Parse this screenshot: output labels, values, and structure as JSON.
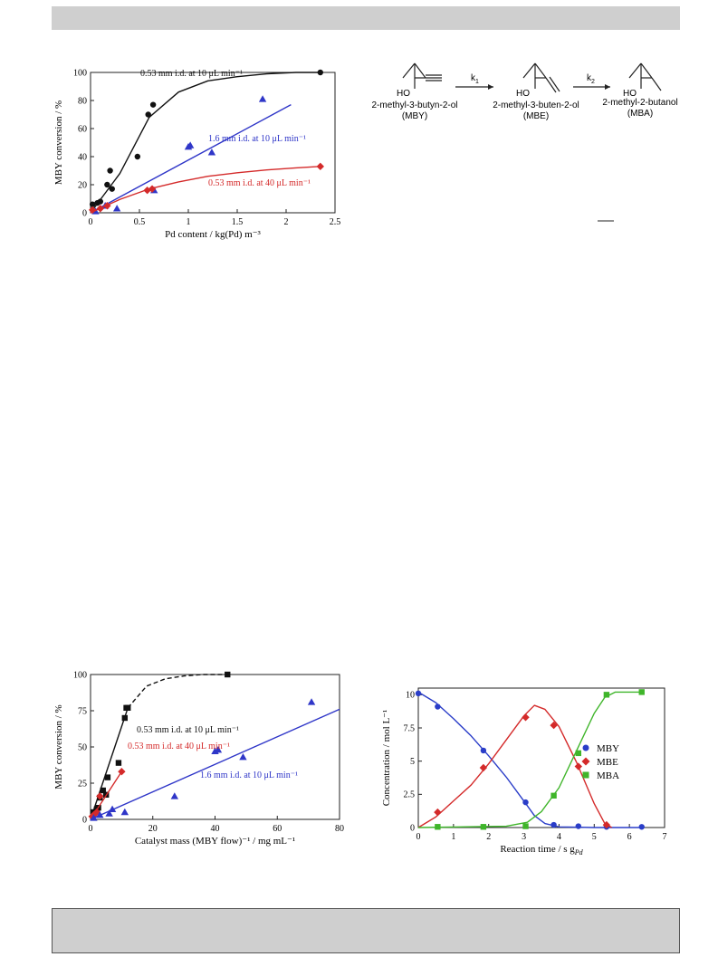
{
  "page": {
    "header_band": "",
    "footer_band": ""
  },
  "chart_data": [
    {
      "type": "scatter",
      "xlabel": "Pd content / kg(Pd) m⁻³",
      "ylabel": "MBY conversion / %",
      "xlim": [
        0,
        2.5
      ],
      "ylim": [
        0,
        100
      ],
      "xticks": [
        "0",
        "0.5",
        "1",
        "1.5",
        "2",
        "2.5"
      ],
      "yticks": [
        "0",
        "20",
        "40",
        "60",
        "80",
        "100"
      ],
      "series": [
        {
          "name": "0.53 mm i.d. at 10 μL min⁻¹",
          "color": "#111111",
          "marker": "circle",
          "x": [
            0.02,
            0.07,
            0.1,
            0.17,
            0.2,
            0.22,
            0.48,
            0.59,
            0.64,
            2.35
          ],
          "y": [
            6,
            7,
            8,
            20,
            30,
            17,
            40,
            70,
            77,
            100
          ],
          "fit_x": [
            0,
            0.3,
            0.6,
            0.9,
            1.2,
            1.5,
            1.8,
            2.1,
            2.35
          ],
          "fit_y": [
            0,
            28,
            68,
            86,
            94,
            97,
            99,
            100,
            100
          ]
        },
        {
          "name": "1.6 mm i.d. at 10 μL min⁻¹",
          "color": "#2f36c8",
          "marker": "triangle",
          "x": [
            0.05,
            0.15,
            0.27,
            0.65,
            1.0,
            1.02,
            1.24,
            1.76
          ],
          "y": [
            1,
            5,
            3,
            16,
            47,
            48,
            43,
            81
          ],
          "fit_x": [
            0,
            2.05
          ],
          "fit_y": [
            0,
            77
          ]
        },
        {
          "name": "0.53 mm i.d. at 40 μL min⁻¹",
          "color": "#d42a2a",
          "marker": "diamond",
          "x": [
            0.02,
            0.1,
            0.17,
            0.58,
            0.63,
            2.35
          ],
          "y": [
            2,
            3,
            5,
            16,
            17,
            33
          ],
          "fit_x": [
            0,
            0.3,
            0.6,
            0.9,
            1.2,
            1.5,
            1.8,
            2.1,
            2.35
          ],
          "fit_y": [
            0,
            9.5,
            17,
            22,
            26,
            28.5,
            30.5,
            32,
            33
          ]
        }
      ]
    },
    {
      "type": "scatter",
      "xlabel": "Catalyst mass (MBY flow)⁻¹ / mg mL⁻¹",
      "ylabel": "MBY conversion / %",
      "xlim": [
        0,
        80
      ],
      "ylim": [
        0,
        100
      ],
      "xticks": [
        "0",
        "20",
        "40",
        "60",
        "80"
      ],
      "yticks": [
        "0",
        "25",
        "50",
        "75",
        "100"
      ],
      "series": [
        {
          "name": "0.53 mm i.d. at 10 μL min⁻¹",
          "color": "#111111",
          "marker": "square",
          "x": [
            1,
            2,
            2.5,
            3,
            4,
            5,
            5.5,
            9,
            11,
            11.5,
            12,
            44
          ],
          "y": [
            5,
            7,
            8,
            15,
            20,
            17,
            29,
            39,
            70,
            77,
            77,
            100
          ],
          "fit_x": [
            0,
            12
          ],
          "fit_y": [
            0,
            77
          ],
          "dash_x": [
            12,
            18,
            24,
            30,
            36,
            44
          ],
          "dash_y": [
            77,
            92,
            97,
            99,
            100,
            100
          ]
        },
        {
          "name": "0.53 mm i.d. at 40 μL min⁻¹",
          "color": "#d42a2a",
          "marker": "diamond",
          "x": [
            0.5,
            1,
            2,
            3,
            10
          ],
          "y": [
            2,
            3,
            5,
            16,
            33
          ],
          "fit_x": [
            0,
            10
          ],
          "fit_y": [
            0,
            33
          ]
        },
        {
          "name": "1.6 mm i.d. at 10 μL min⁻¹",
          "color": "#2f36c8",
          "marker": "triangle",
          "x": [
            1,
            3,
            6,
            7,
            11,
            27,
            40,
            41,
            49,
            71
          ],
          "y": [
            1,
            3,
            4,
            7,
            5,
            16,
            47,
            48,
            43,
            81
          ],
          "fit_x": [
            0,
            80
          ],
          "fit_y": [
            0,
            76
          ]
        }
      ]
    },
    {
      "type": "scatter",
      "xlabel": "Reaction time / s g",
      "xlabel_sub": "Pd",
      "ylabel": "Concentration / mol L⁻¹",
      "xlim": [
        0,
        7
      ],
      "ylim": [
        0,
        10.5
      ],
      "xticks": [
        "0",
        "1",
        "2",
        "3",
        "4",
        "5",
        "6",
        "7"
      ],
      "yticks": [
        "0",
        "2.5",
        "5",
        "7.5",
        "10"
      ],
      "legend_position": "right",
      "series": [
        {
          "name": "MBY",
          "color": "#2a3dc8",
          "marker": "circle",
          "x": [
            0,
            0.55,
            1.85,
            3.05,
            3.85,
            4.55,
            5.35,
            6.35
          ],
          "y": [
            10.1,
            9.1,
            5.8,
            1.9,
            0.2,
            0.1,
            0.05,
            0.05
          ],
          "fit_x": [
            0,
            0.5,
            1,
            1.5,
            2,
            2.5,
            3,
            3.3,
            3.6,
            4,
            5,
            6.35
          ],
          "fit_y": [
            10.2,
            9.4,
            8.2,
            6.9,
            5.4,
            3.8,
            2.0,
            0.9,
            0.3,
            0.05,
            0,
            0
          ]
        },
        {
          "name": "MBE",
          "color": "#d42a2a",
          "marker": "diamond",
          "x": [
            0.55,
            1.85,
            3.05,
            3.85,
            4.55,
            5.35
          ],
          "y": [
            1.15,
            4.5,
            8.3,
            7.7,
            4.6,
            0.2
          ],
          "fit_x": [
            0,
            0.5,
            1,
            1.5,
            2,
            2.5,
            3,
            3.3,
            3.6,
            4,
            4.5,
            5,
            5.3,
            5.5
          ],
          "fit_y": [
            0,
            0.8,
            2.0,
            3.2,
            4.8,
            6.6,
            8.4,
            9.2,
            8.9,
            7.6,
            4.9,
            1.8,
            0.3,
            0
          ]
        },
        {
          "name": "MBA",
          "color": "#3fb52a",
          "marker": "square",
          "x": [
            0.55,
            1.85,
            3.05,
            3.85,
            4.55,
            5.35,
            6.35
          ],
          "y": [
            0.05,
            0.05,
            0.1,
            2.4,
            5.6,
            10.0,
            10.2
          ],
          "fit_x": [
            0,
            2.5,
            3.1,
            3.5,
            4,
            4.5,
            5,
            5.3,
            5.6,
            6.35
          ],
          "fit_y": [
            0,
            0.1,
            0.4,
            1.2,
            3.0,
            5.8,
            8.6,
            9.8,
            10.2,
            10.2
          ]
        }
      ]
    }
  ],
  "scheme": {
    "k1": "k",
    "k1_sub": "1",
    "k2": "k",
    "k2_sub": "2",
    "compounds": [
      {
        "name": "2-methyl-3-butyn-2-ol",
        "abbr": "(MBY)",
        "oh": "HO"
      },
      {
        "name": "2-methyl-3-buten-2-ol",
        "abbr": "(MBE)",
        "oh": "HO"
      },
      {
        "name": "2-methyl-2-butanol",
        "abbr": "(MBA)",
        "oh": "HO"
      }
    ]
  }
}
